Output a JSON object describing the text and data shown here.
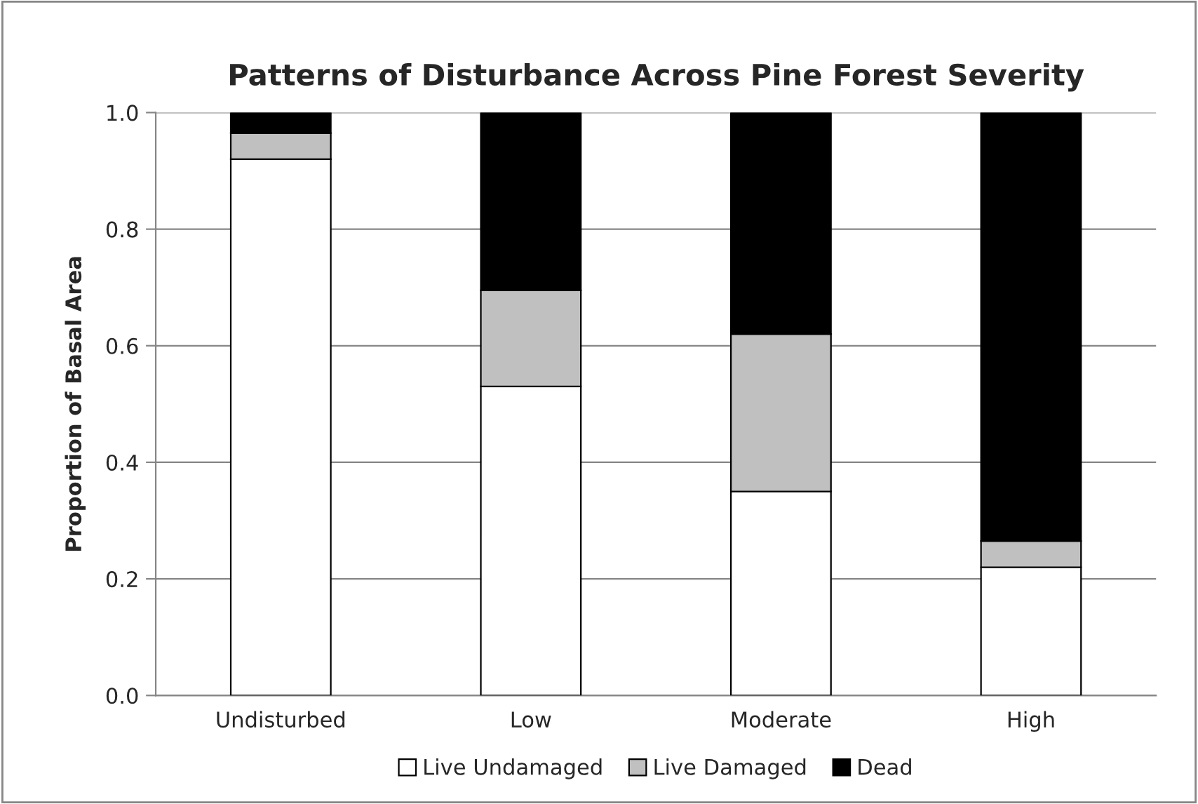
{
  "chart_data": {
    "type": "bar",
    "title": "Patterns of Disturbance Across Pine Forest Severity",
    "ylabel": "Proportion of Basal Area",
    "categories": [
      "Undisturbed",
      "Low",
      "Moderate",
      "High"
    ],
    "series": [
      {
        "name": "Live Undamaged",
        "color": "#ffffff",
        "values": [
          0.92,
          0.53,
          0.35,
          0.22
        ]
      },
      {
        "name": "Live Damaged",
        "color": "#c0c0c0",
        "values": [
          0.045,
          0.165,
          0.27,
          0.045
        ]
      },
      {
        "name": "Dead",
        "color": "#000000",
        "values": [
          0.035,
          0.305,
          0.38,
          0.735
        ]
      }
    ],
    "stacked": true,
    "ylim": [
      0,
      1
    ],
    "yticks": [
      {
        "value": 0,
        "label": "0.0"
      },
      {
        "value": 0.2,
        "label": "0.2"
      },
      {
        "value": 0.4,
        "label": "0.4"
      },
      {
        "value": 0.6,
        "label": "0.6"
      },
      {
        "value": 0.8,
        "label": "0.8"
      },
      {
        "value": 1,
        "label": "1.0"
      }
    ],
    "grid": "y",
    "legend": "bottom"
  }
}
